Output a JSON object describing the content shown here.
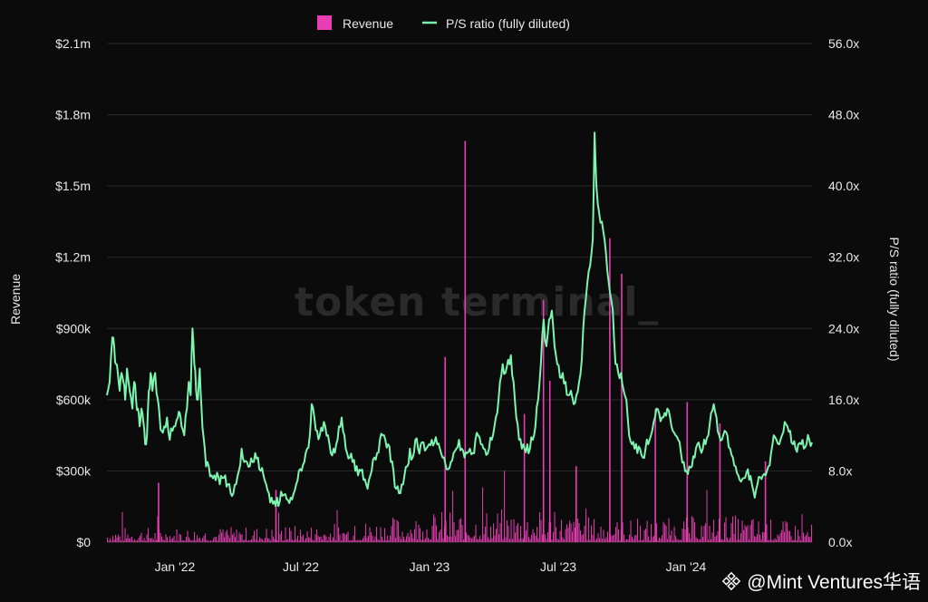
{
  "chart_data": {
    "type": "bar+line",
    "legend": [
      {
        "name": "Revenue",
        "color": "#e83eb4",
        "kind": "bar"
      },
      {
        "name": "P/S ratio (fully diluted)",
        "color": "#7cf5b0",
        "kind": "line"
      }
    ],
    "legend_position": "top-center",
    "ylabel_left": "Revenue",
    "ylabel_right": "P/S ratio (fully diluted)",
    "yticks_left": [
      "$0",
      "$300k",
      "$600k",
      "$900k",
      "$1.2m",
      "$1.5m",
      "$1.8m",
      "$2.1m"
    ],
    "yticks_right": [
      "0.0x",
      "8.0x",
      "16.0x",
      "24.0x",
      "32.0x",
      "40.0x",
      "48.0x",
      "56.0x"
    ],
    "xticks": [
      "Jan '22",
      "Jul '22",
      "Jan '23",
      "Jul '23",
      "Jan '24"
    ],
    "ylim_left": [
      0,
      2100000
    ],
    "ylim_right": [
      0,
      56
    ],
    "grid": true,
    "ps_ratio_series": [
      [
        0,
        16.5
      ],
      [
        0.3,
        18
      ],
      [
        0.6,
        23
      ],
      [
        0.8,
        22
      ],
      [
        1.0,
        20
      ],
      [
        1.2,
        19
      ],
      [
        1.4,
        17
      ],
      [
        1.6,
        19
      ],
      [
        1.8,
        18
      ],
      [
        2.0,
        16
      ],
      [
        2.2,
        19.5
      ],
      [
        2.5,
        17
      ],
      [
        2.8,
        15
      ],
      [
        3.0,
        18
      ],
      [
        3.2,
        16
      ],
      [
        3.4,
        15
      ],
      [
        3.6,
        13
      ],
      [
        3.8,
        15
      ],
      [
        4.0,
        13.5
      ],
      [
        4.2,
        11
      ],
      [
        4.4,
        12
      ],
      [
        4.6,
        17
      ],
      [
        4.8,
        19
      ],
      [
        5.0,
        17
      ],
      [
        5.3,
        19
      ],
      [
        5.6,
        16
      ],
      [
        5.8,
        14
      ],
      [
        6.0,
        12.5
      ],
      [
        6.3,
        13
      ],
      [
        6.6,
        14
      ],
      [
        6.9,
        11.5
      ],
      [
        7.2,
        12.5
      ],
      [
        7.5,
        13
      ],
      [
        7.8,
        14
      ],
      [
        8.0,
        14.5
      ],
      [
        8.2,
        13
      ],
      [
        8.5,
        12
      ],
      [
        8.8,
        15
      ],
      [
        9.0,
        18
      ],
      [
        9.2,
        16.5
      ],
      [
        9.4,
        24
      ],
      [
        9.6,
        20
      ],
      [
        9.8,
        17
      ],
      [
        10.0,
        16
      ],
      [
        10.2,
        19.5
      ],
      [
        10.4,
        15
      ],
      [
        10.6,
        12
      ],
      [
        10.9,
        8.5
      ],
      [
        11.2,
        8.5
      ],
      [
        11.5,
        7.5
      ],
      [
        11.8,
        7.5
      ],
      [
        12.1,
        7.8
      ],
      [
        12.4,
        6.5
      ],
      [
        12.7,
        7.2
      ],
      [
        13.0,
        7.5
      ],
      [
        13.3,
        6.5
      ],
      [
        13.6,
        5.5
      ],
      [
        13.9,
        5.5
      ],
      [
        14.2,
        6.5
      ],
      [
        14.5,
        8
      ],
      [
        14.8,
        10.5
      ],
      [
        15.1,
        9
      ],
      [
        15.4,
        9
      ],
      [
        15.7,
        8.5
      ],
      [
        16.0,
        9
      ],
      [
        16.3,
        10
      ],
      [
        16.6,
        9.5
      ],
      [
        16.9,
        8
      ],
      [
        17.2,
        7.5
      ],
      [
        17.5,
        6.5
      ],
      [
        17.8,
        5.5
      ],
      [
        18.1,
        5
      ],
      [
        18.4,
        4.6
      ],
      [
        18.7,
        5
      ],
      [
        19.0,
        4.6
      ],
      [
        19.3,
        5.2
      ],
      [
        19.6,
        5.4
      ],
      [
        19.9,
        4.7
      ],
      [
        20.2,
        5
      ],
      [
        20.5,
        5.4
      ],
      [
        20.8,
        6.5
      ],
      [
        21.1,
        8
      ],
      [
        21.4,
        8
      ],
      [
        21.7,
        9
      ],
      [
        22.0,
        10.5
      ],
      [
        22.3,
        12
      ],
      [
        22.5,
        15.5
      ],
      [
        22.8,
        14
      ],
      [
        23.1,
        12.5
      ],
      [
        23.4,
        12
      ],
      [
        23.7,
        12.5
      ],
      [
        24.0,
        13
      ],
      [
        24.3,
        12
      ],
      [
        24.6,
        10
      ],
      [
        24.9,
        10.5
      ],
      [
        25.2,
        11
      ],
      [
        25.5,
        13
      ],
      [
        25.8,
        14
      ],
      [
        26.1,
        12
      ],
      [
        26.4,
        10
      ],
      [
        26.7,
        9.5
      ],
      [
        27.0,
        9
      ],
      [
        27.3,
        8
      ],
      [
        27.6,
        7.5
      ],
      [
        27.9,
        8
      ],
      [
        28.2,
        7
      ],
      [
        28.5,
        6.5
      ],
      [
        28.8,
        7
      ],
      [
        29.1,
        8
      ],
      [
        29.4,
        9.5
      ],
      [
        29.7,
        10
      ],
      [
        30.0,
        11.5
      ],
      [
        30.3,
        12
      ],
      [
        30.6,
        11.5
      ],
      [
        30.9,
        11
      ],
      [
        31.2,
        9
      ],
      [
        31.5,
        8
      ],
      [
        31.8,
        6
      ],
      [
        32.1,
        5.5
      ],
      [
        32.4,
        6.5
      ],
      [
        32.7,
        7.5
      ],
      [
        33.0,
        8.5
      ],
      [
        33.3,
        10.5
      ],
      [
        33.6,
        9.5
      ],
      [
        33.9,
        11.5
      ],
      [
        34.2,
        10.5
      ],
      [
        34.5,
        11
      ],
      [
        34.8,
        11.2
      ],
      [
        35.1,
        10.5
      ],
      [
        35.4,
        11
      ],
      [
        35.7,
        11.5
      ],
      [
        36.0,
        11.2
      ],
      [
        36.3,
        11
      ],
      [
        36.6,
        10.5
      ],
      [
        36.9,
        9.5
      ],
      [
        37.2,
        8.8
      ],
      [
        37.5,
        8.2
      ],
      [
        37.8,
        9
      ],
      [
        38.1,
        10
      ],
      [
        38.4,
        10.5
      ],
      [
        38.7,
        11.5
      ],
      [
        39.0,
        10.5
      ],
      [
        39.3,
        9.5
      ],
      [
        39.6,
        10
      ],
      [
        39.9,
        10.5
      ],
      [
        40.2,
        10
      ],
      [
        40.5,
        11.5
      ],
      [
        40.8,
        12
      ],
      [
        41.1,
        11
      ],
      [
        41.4,
        10.5
      ],
      [
        41.7,
        9.8
      ],
      [
        42.0,
        10.5
      ],
      [
        42.3,
        11.5
      ],
      [
        42.6,
        13
      ],
      [
        42.9,
        14.5
      ],
      [
        43.2,
        18
      ],
      [
        43.5,
        20
      ],
      [
        43.8,
        19
      ],
      [
        44.1,
        20.5
      ],
      [
        44.4,
        21
      ],
      [
        44.7,
        18
      ],
      [
        45.0,
        14
      ],
      [
        45.3,
        11.5
      ],
      [
        45.6,
        10.5
      ],
      [
        45.9,
        10.5
      ],
      [
        46.2,
        11
      ],
      [
        46.5,
        10.5
      ],
      [
        46.8,
        11.5
      ],
      [
        47.1,
        13
      ],
      [
        47.4,
        16
      ],
      [
        47.7,
        20
      ],
      [
        48.0,
        25
      ],
      [
        48.3,
        22
      ],
      [
        48.6,
        25
      ],
      [
        48.9,
        26
      ],
      [
        49.2,
        22
      ],
      [
        49.5,
        20
      ],
      [
        49.8,
        18.5
      ],
      [
        50.1,
        19
      ],
      [
        50.4,
        18
      ],
      [
        50.7,
        16.5
      ],
      [
        51.0,
        17
      ],
      [
        51.3,
        15.5
      ],
      [
        51.6,
        16.5
      ],
      [
        51.9,
        18
      ],
      [
        52.2,
        20.5
      ],
      [
        52.5,
        26
      ],
      [
        52.8,
        29
      ],
      [
        53.1,
        31
      ],
      [
        53.4,
        34
      ],
      [
        53.6,
        46
      ],
      [
        53.8,
        40
      ],
      [
        54.1,
        37
      ],
      [
        54.4,
        36
      ],
      [
        54.7,
        34
      ],
      [
        55.0,
        30.5
      ],
      [
        55.3,
        28
      ],
      [
        55.6,
        26
      ],
      [
        55.9,
        20
      ],
      [
        56.2,
        19
      ],
      [
        56.5,
        19
      ],
      [
        56.8,
        17
      ],
      [
        57.1,
        16
      ],
      [
        57.4,
        12
      ],
      [
        57.7,
        11
      ],
      [
        58.0,
        10.5
      ],
      [
        58.3,
        10
      ],
      [
        58.6,
        10.5
      ],
      [
        58.9,
        9.5
      ],
      [
        59.2,
        10.5
      ],
      [
        59.5,
        11
      ],
      [
        59.8,
        12
      ],
      [
        60.1,
        13.5
      ],
      [
        60.4,
        15
      ],
      [
        60.7,
        14.5
      ],
      [
        61.0,
        14
      ],
      [
        61.3,
        14.5
      ],
      [
        61.6,
        15
      ],
      [
        61.9,
        14
      ],
      [
        62.2,
        12.5
      ],
      [
        62.5,
        12
      ],
      [
        62.8,
        11.5
      ],
      [
        63.1,
        10
      ],
      [
        63.4,
        9
      ],
      [
        63.7,
        8
      ],
      [
        64.0,
        8.5
      ],
      [
        64.3,
        8.5
      ],
      [
        64.6,
        9.5
      ],
      [
        64.9,
        11
      ],
      [
        65.2,
        10.5
      ],
      [
        65.5,
        10.5
      ],
      [
        65.8,
        11
      ],
      [
        66.1,
        12
      ],
      [
        66.4,
        14.5
      ],
      [
        66.7,
        15.5
      ],
      [
        67.0,
        14
      ],
      [
        67.3,
        12
      ],
      [
        67.6,
        11.5
      ],
      [
        67.9,
        12.5
      ],
      [
        68.2,
        12
      ],
      [
        68.5,
        10.5
      ],
      [
        68.8,
        9.5
      ],
      [
        69.1,
        8.5
      ],
      [
        69.4,
        7.5
      ],
      [
        69.7,
        6.8
      ],
      [
        70.0,
        7.2
      ],
      [
        70.3,
        7.8
      ],
      [
        70.6,
        7
      ],
      [
        70.9,
        6.5
      ],
      [
        71.2,
        5
      ],
      [
        71.5,
        6.5
      ],
      [
        71.8,
        7.3
      ],
      [
        72.1,
        7.5
      ],
      [
        72.4,
        7.5
      ],
      [
        72.7,
        8.5
      ],
      [
        73.0,
        10
      ],
      [
        73.3,
        12
      ],
      [
        73.6,
        11.5
      ],
      [
        73.9,
        11
      ],
      [
        74.2,
        12
      ],
      [
        74.5,
        13.5
      ],
      [
        74.8,
        13
      ],
      [
        75.1,
        12.5
      ],
      [
        75.4,
        11
      ],
      [
        75.7,
        10.5
      ],
      [
        76.0,
        11
      ],
      [
        76.3,
        11
      ],
      [
        76.6,
        10.5
      ],
      [
        76.9,
        11
      ],
      [
        77.2,
        11.5
      ],
      [
        77.5,
        11.2
      ]
    ],
    "ps_ratio_x_range": [
      0,
      77.5
    ],
    "revenue_spikes": [
      {
        "at": 39.3,
        "value": 1690000
      },
      {
        "at": 47.9,
        "value": 1020000
      },
      {
        "at": 48.6,
        "value": 680000
      },
      {
        "at": 55.2,
        "value": 1280000
      },
      {
        "at": 56.5,
        "value": 1130000
      },
      {
        "at": 51.5,
        "value": 320000
      },
      {
        "at": 60.2,
        "value": 560000
      },
      {
        "at": 63.7,
        "value": 590000
      },
      {
        "at": 67.3,
        "value": 500000
      },
      {
        "at": 37.1,
        "value": 780000
      },
      {
        "at": 45.8,
        "value": 540000
      },
      {
        "at": 5.6,
        "value": 250000
      },
      {
        "at": 18.5,
        "value": 220000
      },
      {
        "at": 72.3,
        "value": 340000
      }
    ],
    "revenue_baseline_typical": 60000
  },
  "watermark": "token terminal_",
  "footer": {
    "text": "@Mint Ventures华语"
  }
}
